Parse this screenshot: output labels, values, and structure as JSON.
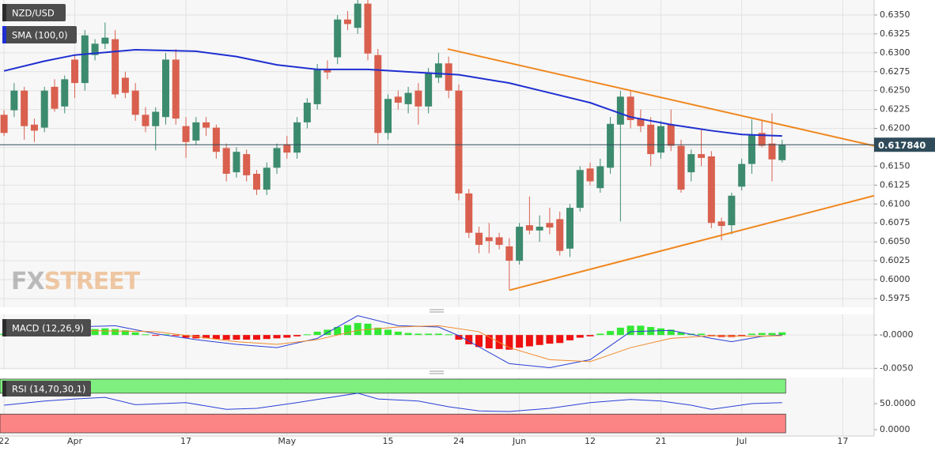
{
  "chart_data": [
    {
      "type": "candlestick",
      "title": "NZD/USD",
      "xlim": [
        -0.4,
        86.1
      ],
      "xticks": [
        {
          "value": 0,
          "label": "22"
        },
        {
          "value": 7,
          "label": "Apr"
        },
        {
          "value": 18,
          "label": "17"
        },
        {
          "value": 28,
          "label": "May"
        },
        {
          "value": 38,
          "label": "15"
        },
        {
          "value": 45,
          "label": "24"
        },
        {
          "value": 51,
          "label": "Jun"
        },
        {
          "value": 58,
          "label": "12"
        },
        {
          "value": 65,
          "label": "21"
        },
        {
          "value": 73,
          "label": "Jul"
        },
        {
          "value": 83,
          "label": "17"
        }
      ],
      "ylim": [
        0.59635,
        0.63698
      ],
      "yticks": [
        {
          "value": 0.635,
          "label": "0.6350"
        },
        0.6325,
        {
          "value": 0.63,
          "label": "0.6300"
        },
        0.6275,
        {
          "value": 0.625,
          "label": "0.6250"
        },
        0.6225,
        {
          "value": 0.62,
          "label": "0.6200"
        },
        0.6175,
        {
          "value": 0.615,
          "label": "0.6150"
        },
        0.6125,
        {
          "value": 0.61,
          "label": "0.6100"
        },
        0.6075,
        {
          "value": 0.605,
          "label": "0.6050"
        },
        0.6025,
        {
          "value": 0.6,
          "label": "0.6000"
        },
        0.5975
      ],
      "grid": true,
      "up_color": "#3d8b6f",
      "down_color": "#d9604e",
      "open": [
        0.6218,
        0.6224,
        0.625,
        0.6205,
        0.6201,
        0.6255,
        0.6229,
        0.6291,
        0.626,
        0.6297,
        0.6312,
        0.6318,
        0.6267,
        0.625,
        0.6218,
        0.6203,
        0.6215,
        0.6291,
        0.6203,
        0.6184,
        0.6208,
        0.6201,
        0.6174,
        0.6142,
        0.6166,
        0.614,
        0.6119,
        0.6148,
        0.6179,
        0.6168,
        0.6208,
        0.6232,
        0.6278,
        0.6294,
        0.6344,
        0.6333,
        0.6365,
        0.6297,
        0.6194,
        0.6242,
        0.6232,
        0.625,
        0.6229,
        0.6267,
        0.6286,
        0.625,
        0.6114,
        0.6062,
        0.6056,
        0.6056,
        0.6044,
        0.6025,
        0.6072,
        0.6065,
        0.6075,
        0.608,
        0.6041,
        0.6095,
        0.6147,
        0.6121,
        0.6148,
        0.6205,
        0.6242,
        0.6213,
        0.6205,
        0.6168,
        0.6205,
        0.6177,
        0.6142,
        0.6166,
        0.6163,
        0.6077,
        0.6072,
        0.6123,
        0.6153,
        0.6194,
        0.618,
        0.6158
      ],
      "high": [
        0.6224,
        0.626,
        0.6255,
        0.6213,
        0.6255,
        0.6265,
        0.627,
        0.6298,
        0.633,
        0.6318,
        0.634,
        0.633,
        0.6275,
        0.626,
        0.6228,
        0.6228,
        0.63,
        0.6305,
        0.6215,
        0.6215,
        0.6215,
        0.6205,
        0.618,
        0.6175,
        0.6172,
        0.6145,
        0.6155,
        0.618,
        0.619,
        0.6215,
        0.624,
        0.6285,
        0.629,
        0.635,
        0.6355,
        0.6372,
        0.637,
        0.6305,
        0.6245,
        0.625,
        0.6255,
        0.626,
        0.628,
        0.63,
        0.6295,
        0.6258,
        0.612,
        0.607,
        0.6075,
        0.6062,
        0.6055,
        0.6075,
        0.611,
        0.6085,
        0.6095,
        0.609,
        0.61,
        0.615,
        0.6155,
        0.616,
        0.6215,
        0.625,
        0.625,
        0.6225,
        0.6215,
        0.621,
        0.6225,
        0.6185,
        0.6172,
        0.62,
        0.617,
        0.6082,
        0.6115,
        0.616,
        0.6212,
        0.621,
        0.622,
        0.6185
      ],
      "low": [
        0.619,
        0.6215,
        0.6185,
        0.6182,
        0.6195,
        0.6222,
        0.622,
        0.624,
        0.625,
        0.629,
        0.6305,
        0.624,
        0.624,
        0.621,
        0.6195,
        0.6171,
        0.6205,
        0.6205,
        0.6161,
        0.6178,
        0.619,
        0.616,
        0.613,
        0.6135,
        0.613,
        0.6112,
        0.6112,
        0.614,
        0.616,
        0.616,
        0.62,
        0.6225,
        0.6265,
        0.6285,
        0.633,
        0.6325,
        0.629,
        0.618,
        0.6185,
        0.6225,
        0.622,
        0.6205,
        0.622,
        0.626,
        0.624,
        0.6105,
        0.6055,
        0.6035,
        0.6035,
        0.604,
        0.5987,
        0.602,
        0.606,
        0.605,
        0.606,
        0.6032,
        0.603,
        0.609,
        0.6125,
        0.6115,
        0.614,
        0.6077,
        0.62,
        0.6195,
        0.615,
        0.616,
        0.617,
        0.6115,
        0.613,
        0.615,
        0.6068,
        0.6052,
        0.606,
        0.6118,
        0.614,
        0.6175,
        0.613,
        0.6155
      ],
      "close": [
        0.6194,
        0.625,
        0.6203,
        0.6197,
        0.625,
        0.6226,
        0.6265,
        0.626,
        0.6323,
        0.6312,
        0.632,
        0.6245,
        0.6247,
        0.6218,
        0.6203,
        0.6222,
        0.6291,
        0.6213,
        0.6182,
        0.6208,
        0.6201,
        0.6169,
        0.614,
        0.6169,
        0.6138,
        0.6119,
        0.6148,
        0.6174,
        0.6168,
        0.6208,
        0.6234,
        0.6278,
        0.6274,
        0.6344,
        0.6338,
        0.6365,
        0.6299,
        0.6194,
        0.6239,
        0.6234,
        0.6247,
        0.6229,
        0.6274,
        0.6286,
        0.625,
        0.6114,
        0.6062,
        0.6046,
        0.6051,
        0.6046,
        0.6025,
        0.607,
        0.6065,
        0.607,
        0.6069,
        0.6038,
        0.6095,
        0.6145,
        0.613,
        0.615,
        0.6206,
        0.6242,
        0.6211,
        0.6203,
        0.6166,
        0.6203,
        0.6177,
        0.6119,
        0.6166,
        0.6161,
        0.6075,
        0.6071,
        0.6111,
        0.6153,
        0.6192,
        0.6177,
        0.6159,
        0.61784
      ],
      "last_price": {
        "value": 0.61784,
        "label": "0.617840"
      },
      "series": [
        {
          "name": "SMA (100,0)",
          "color": "#1f2fd0",
          "x": [
            0,
            4,
            7,
            13,
            19,
            23,
            27,
            31,
            36,
            41,
            45,
            50,
            54,
            58,
            62,
            66,
            70,
            73,
            77
          ],
          "values": [
            0.6276,
            0.6289,
            0.6297,
            0.6304,
            0.6302,
            0.6295,
            0.6284,
            0.6278,
            0.6278,
            0.6274,
            0.6271,
            0.626,
            0.6247,
            0.6234,
            0.6215,
            0.6205,
            0.6197,
            0.6192,
            0.619
          ]
        }
      ],
      "trendline_color": "#f0871f",
      "trendlines": [
        {
          "x": [
            43.9,
            86.1
          ],
          "values": [
            0.6305,
            0.6177
          ]
        },
        {
          "x": [
            50.0,
            86.1
          ],
          "values": [
            0.5986,
            0.6111
          ]
        }
      ],
      "watermark": [
        "FX",
        "STREET"
      ]
    },
    {
      "type": "macd",
      "title": "MACD (12,26,9)",
      "ylim": [
        -0.0052,
        0.0031
      ],
      "yticks": [
        {
          "value": 0,
          "label": "-0.0000"
        },
        {
          "value": -0.005,
          "label": "-0.0050"
        }
      ],
      "grid": true,
      "up_color": "#33e833",
      "down_color": "#ee1111",
      "histogram": [
        0.0002,
        0.0003,
        0.0003,
        0.0002,
        0.0003,
        0.0003,
        0.0004,
        0.0005,
        0.0007,
        0.0009,
        0.001,
        0.0009,
        0.0007,
        0.0004,
        0.0001,
        -0.0001,
        0.0001,
        -0.0001,
        -0.0004,
        -0.0005,
        -0.0005,
        -0.0006,
        -0.0007,
        -0.0007,
        -0.0007,
        -0.0007,
        -0.0006,
        -0.0005,
        -0.0004,
        -0.0002,
        0.0001,
        0.0005,
        0.0008,
        0.0012,
        0.0015,
        0.0018,
        0.0017,
        0.0011,
        0.0008,
        0.0005,
        0.0003,
        0.0002,
        0.0002,
        0.0002,
        0.0001,
        -0.0007,
        -0.0014,
        -0.0018,
        -0.002,
        -0.0021,
        -0.0022,
        -0.0019,
        -0.0017,
        -0.0015,
        -0.0013,
        -0.0012,
        -0.0008,
        -0.0004,
        -0.0002,
        0.0002,
        0.0006,
        0.0011,
        0.0014,
        0.0014,
        0.0012,
        0.001,
        0.0008,
        0.0004,
        0.0002,
        0.0002,
        -0.0002,
        -0.0003,
        -0.0003,
        -0.0001,
        0.0002,
        0.0003,
        0.0003,
        0.0004
      ],
      "series": [
        {
          "color": "#2a3fd6",
          "x": [
            0,
            7,
            11,
            15,
            19,
            23,
            27,
            31,
            35,
            39,
            43,
            45,
            50,
            54,
            58,
            62,
            66,
            70,
            72,
            75,
            77
          ],
          "values": [
            0.0005,
            0.0012,
            0.0014,
            0.0002,
            -0.0007,
            -0.0014,
            -0.0019,
            -0.0005,
            0.0029,
            0.0014,
            0.0012,
            -0.0001,
            -0.0043,
            -0.0049,
            -0.0037,
            0.0005,
            0.0007,
            -0.0005,
            -0.001,
            -0.0002,
            0.0
          ]
        },
        {
          "color": "#f08a2a",
          "x": [
            0,
            7,
            15,
            23,
            27,
            31,
            35,
            39,
            43,
            47,
            50,
            54,
            58,
            62,
            66,
            70,
            74,
            77
          ],
          "values": [
            0.0001,
            0.0007,
            0.0005,
            -0.001,
            -0.0014,
            -0.0007,
            0.0007,
            0.0012,
            0.0014,
            0.0005,
            -0.0019,
            -0.0037,
            -0.004,
            -0.0019,
            -0.0005,
            -0.0001,
            -0.0002,
            -0.0001
          ]
        }
      ]
    },
    {
      "type": "rsi",
      "title": "RSI (14,70,30,1)",
      "ylim": [
        -12,
        100
      ],
      "yticks": [
        {
          "value": 50,
          "label": "50.0000"
        },
        {
          "value": 0,
          "label": "0.0000"
        }
      ],
      "levels": [
        70,
        30
      ],
      "band_colors": [
        "#7ff07f",
        "#fb8484"
      ],
      "series": [
        {
          "color": "#2a3fd6",
          "x": [
            0,
            4,
            7,
            10,
            13,
            18,
            22,
            25,
            29,
            35,
            37,
            41,
            44,
            47,
            50,
            54,
            58,
            62,
            65,
            68,
            70,
            74,
            77
          ],
          "values": [
            47,
            55,
            59,
            62,
            48,
            52,
            39,
            41,
            52,
            70,
            59,
            55,
            44,
            36,
            35,
            41,
            52,
            58,
            55,
            47,
            39,
            50,
            52
          ]
        }
      ]
    }
  ]
}
